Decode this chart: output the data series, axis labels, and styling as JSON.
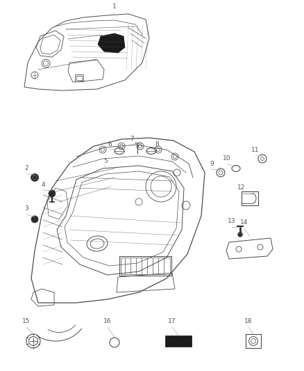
{
  "bg_color": "#ffffff",
  "line_color": "#4a4a4a",
  "label_color": "#555555",
  "label_fontsize": 6.5,
  "label_line_color": "#888888"
}
